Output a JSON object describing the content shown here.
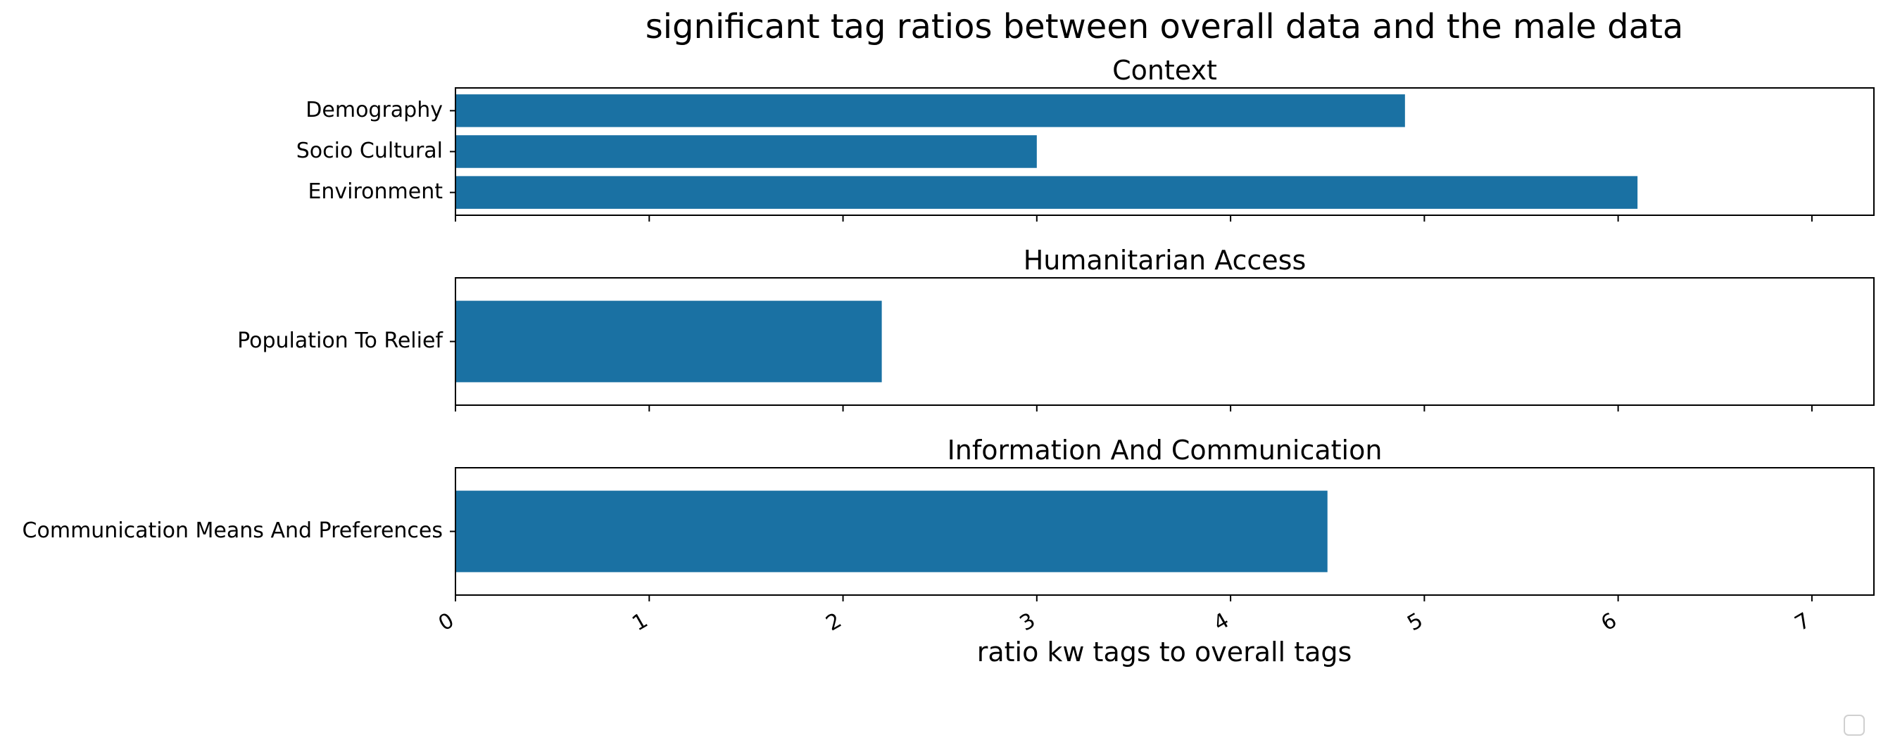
{
  "chart_data": {
    "type": "bar",
    "orientation": "horizontal",
    "title": "significant tag ratios between overall data and the male data",
    "xlabel": "ratio kw tags to overall tags",
    "xlim": [
      0,
      7.32
    ],
    "xticks": [
      0,
      1,
      2,
      3,
      4,
      5,
      6,
      7
    ],
    "shared_x_axis": true,
    "grid": false,
    "legend": {
      "placement": "lower-right",
      "entries": []
    },
    "bar_color": "#1a71a3",
    "panels": [
      {
        "title": "Context",
        "categories": [
          "Demography",
          "Socio Cultural",
          "Environment"
        ],
        "values": [
          4.9,
          3.0,
          6.1
        ]
      },
      {
        "title": "Humanitarian Access",
        "categories": [
          "Population To Relief"
        ],
        "values": [
          2.2
        ]
      },
      {
        "title": "Information And Communication",
        "categories": [
          "Communication Means And Preferences"
        ],
        "values": [
          4.5
        ]
      }
    ]
  }
}
